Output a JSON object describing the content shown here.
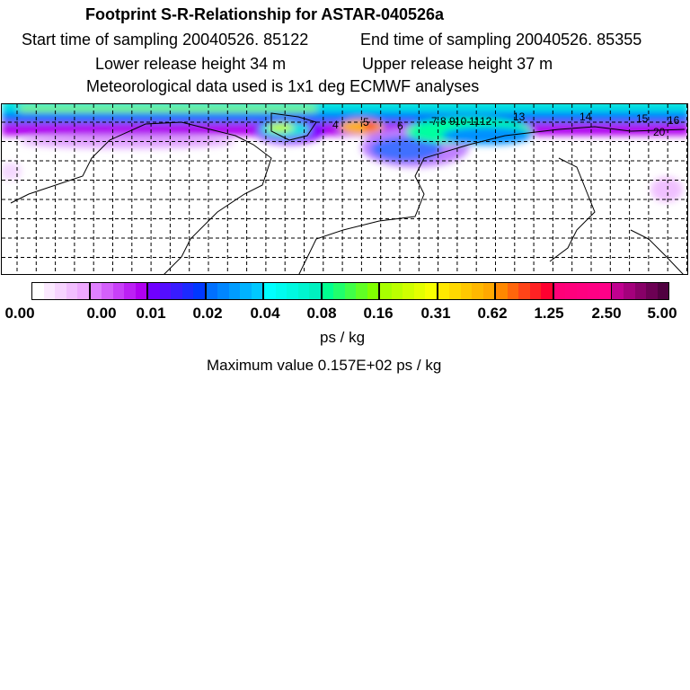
{
  "header": {
    "title": "Footprint S-R-Relationship for ASTAR-040526a",
    "start_time": "Start time of sampling 20040526. 85122",
    "end_time": "End time of sampling 20040526. 85355",
    "lower_height": "Lower release height   34 m",
    "upper_height": "Upper release height   37 m",
    "met_data": "Meteorological data used is 1x1 deg ECMWF analyses"
  },
  "map": {
    "point_labels": [
      "4",
      "5",
      "6",
      "7",
      "8",
      "9",
      "10",
      "11",
      "12",
      "13",
      "14",
      "15",
      "16",
      "20"
    ]
  },
  "colorbar": {
    "tick_labels": [
      "0.00",
      "0.00",
      "0.01",
      "0.02",
      "0.04",
      "0.08",
      "0.16",
      "0.31",
      "0.62",
      "1.25",
      "2.50",
      "5.00"
    ],
    "sections": [
      [
        "#ffffff",
        "#eea8ff"
      ],
      [
        "#e080ff",
        "#b000f0"
      ],
      [
        "#7000ff",
        "#0038ff"
      ],
      [
        "#0070ff",
        "#00c8ff"
      ],
      [
        "#00ffff",
        "#00f0c0"
      ],
      [
        "#00ff90",
        "#80ff00"
      ],
      [
        "#a8ff00",
        "#f8ff00"
      ],
      [
        "#ffe800",
        "#ffa800"
      ],
      [
        "#ff8800",
        "#ff0030"
      ],
      [
        "#ff0078",
        "#ff0088"
      ],
      [
        "#c00090",
        "#500040"
      ]
    ],
    "unit": "ps / kg"
  },
  "footer": {
    "max_value": "Maximum value  0.157E+02 ps / kg"
  }
}
